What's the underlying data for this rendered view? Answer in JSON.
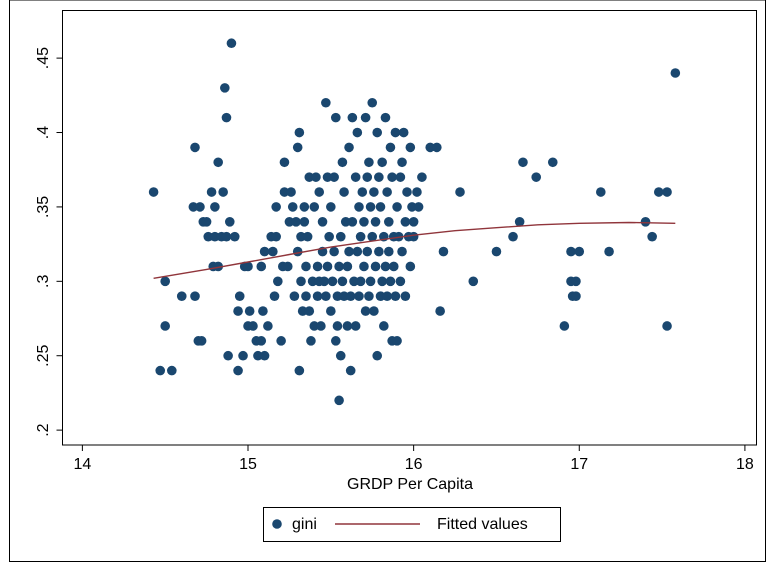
{
  "chart_data": {
    "type": "scatter",
    "x_label": "GRDP Per Capita",
    "xlim": [
      13.88,
      18.07
    ],
    "ylim": [
      0.19,
      0.482
    ],
    "xticks": [
      14,
      15,
      16,
      17,
      18
    ],
    "yticks": [
      {
        "value": 0.2,
        "label": ".2"
      },
      {
        "value": 0.25,
        "label": ".25"
      },
      {
        "value": 0.3,
        "label": ".3"
      },
      {
        "value": 0.35,
        "label": ".35"
      },
      {
        "value": 0.4,
        "label": ".4"
      },
      {
        "value": 0.45,
        "label": ".45"
      }
    ],
    "grid": false,
    "legend": "bottom",
    "series": [
      {
        "name": "gini",
        "color": "#1a476f",
        "mode": "markers",
        "x": [
          14.43,
          14.47,
          14.5,
          14.5,
          14.54,
          14.6,
          14.68,
          14.67,
          14.68,
          14.7,
          14.72,
          14.71,
          14.73,
          14.75,
          14.76,
          14.78,
          14.79,
          14.8,
          14.8,
          14.82,
          14.82,
          14.84,
          14.85,
          14.86,
          14.87,
          14.87,
          14.88,
          14.89,
          14.9,
          14.92,
          14.94,
          14.94,
          14.95,
          14.97,
          14.98,
          15.0,
          15.0,
          15.01,
          15.03,
          15.05,
          15.06,
          15.08,
          15.08,
          15.09,
          15.1,
          15.1,
          15.12,
          15.14,
          15.15,
          15.16,
          15.17,
          15.17,
          15.18,
          15.2,
          15.21,
          15.22,
          15.22,
          15.24,
          15.25,
          15.26,
          15.27,
          15.28,
          15.29,
          15.3,
          15.3,
          15.31,
          15.31,
          15.32,
          15.32,
          15.33,
          15.34,
          15.34,
          15.35,
          15.35,
          15.36,
          15.37,
          15.37,
          15.38,
          15.39,
          15.4,
          15.4,
          15.41,
          15.42,
          15.42,
          15.43,
          15.43,
          15.44,
          15.45,
          15.45,
          15.46,
          15.47,
          15.47,
          15.48,
          15.48,
          15.49,
          15.5,
          15.5,
          15.51,
          15.52,
          15.52,
          15.53,
          15.53,
          15.54,
          15.54,
          15.55,
          15.55,
          15.56,
          15.56,
          15.57,
          15.57,
          15.58,
          15.58,
          15.59,
          15.6,
          15.6,
          15.61,
          15.61,
          15.62,
          15.62,
          15.63,
          15.63,
          15.64,
          15.65,
          15.65,
          15.66,
          15.66,
          15.67,
          15.67,
          15.68,
          15.68,
          15.69,
          15.7,
          15.7,
          15.71,
          15.71,
          15.72,
          15.72,
          15.73,
          15.73,
          15.74,
          15.74,
          15.75,
          15.75,
          15.76,
          15.76,
          15.77,
          15.77,
          15.78,
          15.78,
          15.79,
          15.79,
          15.8,
          15.8,
          15.81,
          15.81,
          15.82,
          15.82,
          15.83,
          15.83,
          15.84,
          15.84,
          15.85,
          15.85,
          15.86,
          15.86,
          15.87,
          15.87,
          15.88,
          15.88,
          15.89,
          15.89,
          15.9,
          15.9,
          15.91,
          15.92,
          15.92,
          15.93,
          15.93,
          15.94,
          15.95,
          15.95,
          15.96,
          15.97,
          15.98,
          15.98,
          15.99,
          16.0,
          16.0,
          16.02,
          16.03,
          16.05,
          16.1,
          16.14,
          16.16,
          16.18,
          16.28,
          16.36,
          16.5,
          16.6,
          16.64,
          16.66,
          16.74,
          16.84,
          16.91,
          16.95,
          16.95,
          16.96,
          16.98,
          16.98,
          17.0,
          17.13,
          17.18,
          17.4,
          17.44,
          17.48,
          17.53,
          17.53,
          17.58
        ],
        "values": [
          0.36,
          0.24,
          0.3,
          0.27,
          0.24,
          0.29,
          0.39,
          0.35,
          0.29,
          0.26,
          0.26,
          0.35,
          0.34,
          0.34,
          0.33,
          0.36,
          0.31,
          0.35,
          0.33,
          0.31,
          0.38,
          0.33,
          0.36,
          0.43,
          0.33,
          0.41,
          0.25,
          0.34,
          0.46,
          0.33,
          0.28,
          0.24,
          0.29,
          0.25,
          0.31,
          0.31,
          0.27,
          0.28,
          0.27,
          0.26,
          0.25,
          0.31,
          0.26,
          0.28,
          0.32,
          0.25,
          0.27,
          0.33,
          0.32,
          0.29,
          0.33,
          0.35,
          0.3,
          0.26,
          0.31,
          0.38,
          0.36,
          0.31,
          0.34,
          0.36,
          0.35,
          0.29,
          0.34,
          0.32,
          0.39,
          0.4,
          0.24,
          0.3,
          0.33,
          0.28,
          0.35,
          0.34,
          0.31,
          0.29,
          0.33,
          0.37,
          0.28,
          0.26,
          0.3,
          0.35,
          0.27,
          0.37,
          0.31,
          0.29,
          0.36,
          0.3,
          0.27,
          0.32,
          0.34,
          0.3,
          0.42,
          0.29,
          0.37,
          0.31,
          0.33,
          0.35,
          0.28,
          0.3,
          0.32,
          0.37,
          0.41,
          0.26,
          0.29,
          0.27,
          0.22,
          0.31,
          0.33,
          0.25,
          0.38,
          0.3,
          0.36,
          0.29,
          0.34,
          0.31,
          0.27,
          0.39,
          0.32,
          0.24,
          0.29,
          0.41,
          0.34,
          0.3,
          0.37,
          0.27,
          0.4,
          0.32,
          0.35,
          0.29,
          0.33,
          0.3,
          0.36,
          0.31,
          0.34,
          0.41,
          0.28,
          0.37,
          0.32,
          0.38,
          0.29,
          0.35,
          0.3,
          0.42,
          0.33,
          0.36,
          0.28,
          0.31,
          0.34,
          0.4,
          0.25,
          0.37,
          0.32,
          0.29,
          0.35,
          0.3,
          0.38,
          0.33,
          0.27,
          0.41,
          0.31,
          0.36,
          0.29,
          0.34,
          0.32,
          0.39,
          0.3,
          0.26,
          0.37,
          0.33,
          0.31,
          0.4,
          0.29,
          0.35,
          0.26,
          0.33,
          0.37,
          0.3,
          0.38,
          0.32,
          0.4,
          0.34,
          0.29,
          0.36,
          0.33,
          0.39,
          0.31,
          0.35,
          0.34,
          0.33,
          0.36,
          0.35,
          0.37,
          0.39,
          0.39,
          0.28,
          0.32,
          0.36,
          0.3,
          0.32,
          0.33,
          0.34,
          0.38,
          0.37,
          0.38,
          0.27,
          0.32,
          0.3,
          0.29,
          0.3,
          0.29,
          0.32,
          0.36,
          0.32,
          0.34,
          0.33,
          0.36,
          0.36,
          0.27,
          0.44
        ]
      },
      {
        "name": "Fitted values",
        "color": "#90353b",
        "mode": "line",
        "x": [
          14.43,
          14.75,
          15.0,
          15.25,
          15.5,
          15.75,
          16.0,
          16.25,
          16.5,
          16.75,
          17.0,
          17.3,
          17.58
        ],
        "values": [
          0.302,
          0.308,
          0.313,
          0.318,
          0.323,
          0.327,
          0.331,
          0.334,
          0.336,
          0.338,
          0.339,
          0.3395,
          0.339
        ]
      }
    ]
  }
}
